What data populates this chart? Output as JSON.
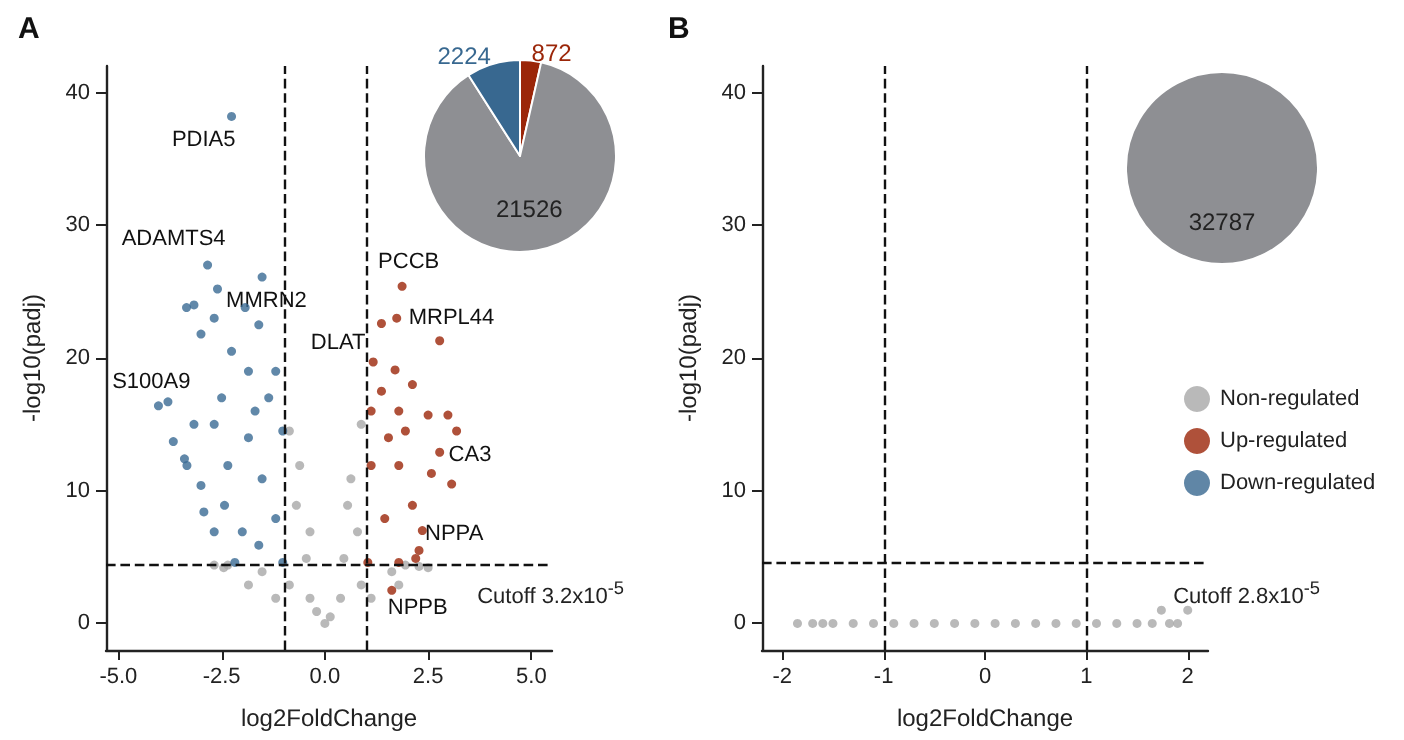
{
  "chart_data": [
    {
      "type": "scatter",
      "title": "A",
      "xlabel": "log2FoldChange",
      "ylabel": "-log10(padj)",
      "xlim": [
        -5.3,
        5.5
      ],
      "ylim": [
        -2,
        42
      ],
      "xticks": [
        {
          "value": -5,
          "label": "-5.0"
        },
        {
          "value": -2.5,
          "label": "-2.5"
        },
        {
          "value": 0,
          "label": "0.0"
        },
        {
          "value": 2.5,
          "label": "2.5"
        },
        {
          "value": 5,
          "label": "5.0"
        }
      ],
      "yticks": [
        0,
        10,
        20,
        30,
        40
      ],
      "grid": false,
      "legend": false,
      "marker": "circle",
      "series": [
        {
          "color": "#a8a8a8",
          "x": [
            0,
            -0.36,
            0.38,
            -0.86,
            0.88,
            -1.52,
            1.62,
            -2.35,
            1.95,
            -2.68,
            2.28,
            -0.86,
            -0.61,
            -0.36,
            0.55,
            0.88,
            0.63,
            0.46,
            -0.45,
            -0.69,
            0.79,
            0.13,
            1.12,
            -1.19,
            -1.85,
            1.79,
            -0.2,
            -2.45,
            2.5
          ],
          "values": [
            0,
            1.9,
            1.9,
            2.9,
            2.9,
            3.9,
            3.9,
            4.4,
            4.4,
            4.4,
            4.3,
            14.5,
            11.9,
            6.9,
            8.9,
            15,
            10.9,
            4.9,
            4.9,
            8.9,
            6.9,
            0.5,
            1.9,
            1.9,
            2.9,
            2.9,
            0.9,
            4.2,
            4.2
          ]
        },
        {
          "color": "#9b2609",
          "x": [
            1.87,
            1.74,
            1.37,
            2.78,
            1.17,
            1.7,
            2.12,
            2.5,
            2.98,
            3.19,
            2.78,
            3.07,
            2.58,
            1.12,
            1.79,
            1.12,
            1.79,
            2.12,
            1.04,
            1.79,
            2.28,
            2.36,
            1.45,
            1.95,
            1.37,
            2.2,
            1.54,
            1.62
          ],
          "values": [
            25.4,
            23,
            22.6,
            21.3,
            19.7,
            19.1,
            18,
            15.7,
            15.7,
            14.5,
            12.9,
            10.5,
            11.3,
            16,
            16,
            11.9,
            11.9,
            8.9,
            4.6,
            4.6,
            5.5,
            7,
            7.9,
            14.5,
            17.5,
            4.9,
            14,
            2.5
          ]
        },
        {
          "color": "#3a6a94",
          "x": [
            -2.84,
            -1.52,
            -2.6,
            -3.35,
            -1.93,
            -1.6,
            -3,
            -2.26,
            -4.03,
            -3.8,
            -3.67,
            -3.34,
            -2.93,
            -2.68,
            -2.18,
            -1.02,
            -1.02,
            -1.19,
            -1.85,
            -2.5,
            -3.17,
            -3,
            -2.35,
            -1.85,
            -1.52,
            -1.19,
            -2,
            -2.26,
            -3.4,
            -2.68,
            -1.69,
            -1.36,
            -2.43,
            -1.6,
            -3.17,
            -2.68
          ],
          "values": [
            27,
            26.1,
            25.2,
            23.8,
            23.8,
            22.5,
            21.8,
            20.5,
            16.4,
            16.7,
            13.7,
            11.9,
            8.4,
            6.9,
            4.6,
            4.6,
            14.5,
            19,
            19,
            17,
            15,
            10.4,
            11.9,
            14,
            10.9,
            7.9,
            6.9,
            38.2,
            12.4,
            15,
            16,
            17,
            8.9,
            5.9,
            24,
            23
          ]
        }
      ],
      "ref_lines": [
        {
          "axis": "x",
          "value": -1,
          "label": null,
          "line_style": "dashed"
        },
        {
          "axis": "x",
          "value": 1,
          "label": null,
          "line_style": "dashed"
        },
        {
          "axis": "y",
          "value": 4.49,
          "label": "Cutoff 3.2x10$^{-5}$",
          "line_style": "dashed"
        }
      ],
      "annotations": [
        {
          "text": "PDIA5",
          "x": -2.26,
          "y": 38.2
        },
        {
          "text": "ADAMTS4",
          "x": -2.84,
          "y": 27
        },
        {
          "text": "MMRN2",
          "x": -1.52,
          "y": 26.1
        },
        {
          "text": "S100A9",
          "x": -4.03,
          "y": 16.4
        },
        {
          "text": "PCCB",
          "x": 1.87,
          "y": 25.4
        },
        {
          "text": "MRPL44",
          "x": 1.74,
          "y": 23
        },
        {
          "text": "DLAT",
          "x": 1.37,
          "y": 22.6
        },
        {
          "text": "CA3",
          "x": 3.19,
          "y": 14.5
        },
        {
          "text": "NPPA",
          "x": 2.28,
          "y": 5.5
        },
        {
          "text": "NPPB",
          "x": 1.62,
          "y": 2.5
        }
      ]
    },
    {
      "type": "pie",
      "categories": [
        null,
        null,
        null
      ],
      "values": [
        872,
        21526,
        2224
      ],
      "colors": [
        "#9b2609",
        "#8e8f93",
        "#386890"
      ],
      "data_labels": true
    },
    {
      "type": "scatter",
      "title": "B",
      "xlabel": "log2FoldChange",
      "ylabel": "-log10(padj)",
      "xlim": [
        -2.2,
        2.2
      ],
      "ylim": [
        -2,
        42
      ],
      "xticks": [
        -2,
        -1,
        0,
        1,
        2
      ],
      "yticks": [
        0,
        10,
        20,
        30,
        40
      ],
      "grid": false,
      "legend": "right",
      "marker": "circle",
      "series": [
        {
          "name": "Non-regulated",
          "color": "#a8a8a8",
          "x": [
            -1.85,
            -1.7,
            -1.6,
            -1.5,
            -1.3,
            -1.1,
            -0.9,
            -0.7,
            -0.5,
            -0.3,
            -0.1,
            0.1,
            0.3,
            0.5,
            0.7,
            0.9,
            1.1,
            1.3,
            1.5,
            1.65,
            1.74,
            1.82,
            1.9,
            2.0
          ],
          "values": [
            0,
            0,
            0,
            0,
            0,
            0,
            0,
            0,
            0,
            0,
            0,
            0,
            0,
            0,
            0,
            0,
            0,
            0,
            0,
            0,
            1,
            0,
            0,
            1
          ]
        },
        {
          "name": "Up-regulated",
          "color": "#9b2609"
        },
        {
          "name": "Down-regulated",
          "color": "#386890"
        }
      ],
      "ref_lines": [
        {
          "axis": "x",
          "value": -1,
          "label": null,
          "line_style": "dashed"
        },
        {
          "axis": "x",
          "value": 1,
          "label": null,
          "line_style": "dashed"
        },
        {
          "axis": "y",
          "value": 4.55,
          "label": "Cutoff 2.8x10$^{-5}$",
          "line_style": "dashed"
        }
      ]
    },
    {
      "type": "pie",
      "categories": [
        null
      ],
      "values": [
        32787
      ],
      "colors": [
        "#8e8f93"
      ],
      "data_labels": true
    }
  ]
}
